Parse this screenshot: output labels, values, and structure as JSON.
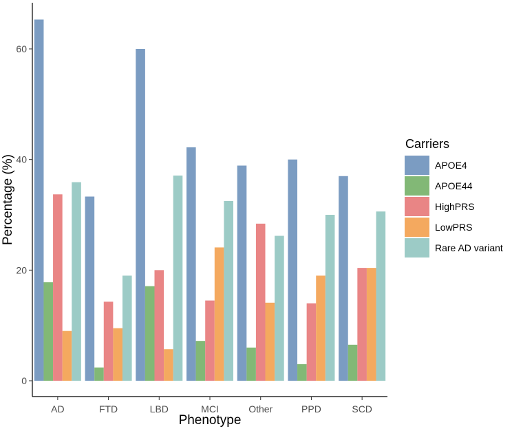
{
  "chart_data": {
    "type": "bar",
    "xlabel": "Phenotype",
    "ylabel": "Percentage (%)",
    "ylim": [
      0,
      67
    ],
    "yticks": [
      0,
      20,
      40,
      60
    ],
    "grid": false,
    "legend_position": "right",
    "legend_title": "Carriers",
    "categories": [
      "AD",
      "FTD",
      "LBD",
      "MCI",
      "Other",
      "PPD",
      "SCD"
    ],
    "series": [
      {
        "name": "APOE4",
        "color": "#7b9cc2",
        "values": [
          65.3,
          33.3,
          60.0,
          42.2,
          38.9,
          40.0,
          37.0
        ]
      },
      {
        "name": "APOE44",
        "color": "#82b876",
        "values": [
          17.8,
          2.4,
          17.1,
          7.2,
          6.0,
          3.0,
          6.5
        ]
      },
      {
        "name": "HighPRS",
        "color": "#e98585",
        "values": [
          33.7,
          14.3,
          20.0,
          14.5,
          28.4,
          14.0,
          20.4
        ]
      },
      {
        "name": "LowPRS",
        "color": "#f4a95f",
        "values": [
          9.0,
          9.5,
          5.7,
          24.1,
          14.1,
          19.0,
          20.4
        ]
      },
      {
        "name": "Rare AD variant",
        "color": "#9ccbc6",
        "values": [
          35.9,
          19.0,
          37.1,
          32.5,
          26.2,
          30.0,
          30.6
        ]
      }
    ]
  }
}
